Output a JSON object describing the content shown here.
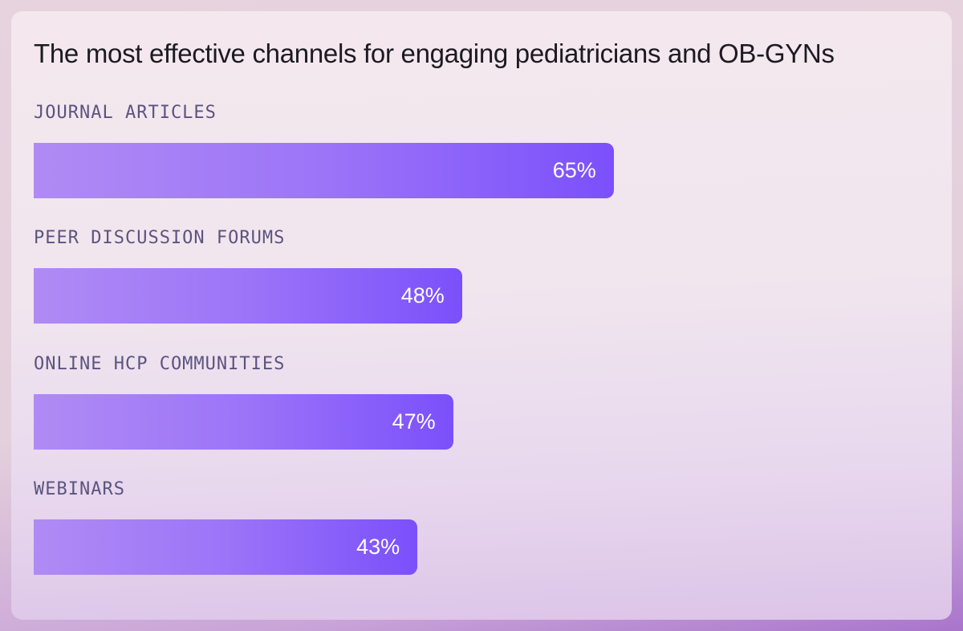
{
  "chart_data": {
    "type": "bar",
    "orientation": "horizontal",
    "title": "The most effective channels for engaging pediatricians and OB-GYNs",
    "categories": [
      "JOURNAL ARTICLES",
      "PEER DISCUSSION FORUMS",
      "ONLINE HCP COMMUNITIES",
      "WEBINARS"
    ],
    "values": [
      65,
      48,
      47,
      43
    ],
    "value_labels": [
      "65%",
      "48%",
      "47%",
      "43%"
    ],
    "unit": "%",
    "xlim": [
      0,
      100
    ],
    "grid": false,
    "colors": {
      "bar_start": "#b08bf4",
      "bar_end": "#7b50fb",
      "label": "#5b5480",
      "title": "#1c1a22"
    }
  }
}
